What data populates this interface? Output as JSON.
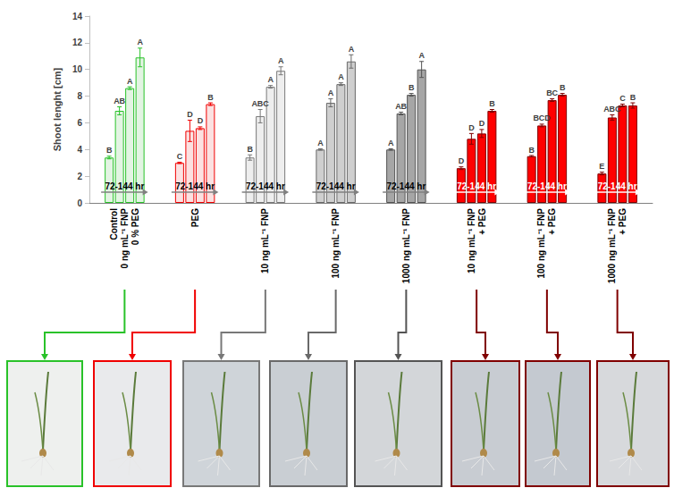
{
  "chart_data": {
    "type": "bar",
    "y_label": "Shoot lenght [cm]",
    "annotation": "72-144 hr",
    "categories": [
      "Control\n0 ng mL⁻¹ FNP\n0 % PEG",
      "PEG",
      "10 ng mL⁻¹ FNP",
      "100 ng mL⁻¹ FNP",
      "1000 ng mL⁻¹ FNP",
      "10 ng mL⁻¹ FNP\n+ PEG",
      "100 ng mL⁻¹ FNP\n+ PEG",
      "1000 ng mL⁻¹ FNP\n+ PEG"
    ],
    "colors": [
      "#e3f4e3",
      "#fbe1e1",
      "#eeeeee",
      "#cfcfcf",
      "#a6a6a6",
      "#ff0000",
      "#ff0000",
      "#ff0000"
    ],
    "series": [
      {
        "values": [
          3.4,
          3.0,
          3.4,
          4.0,
          4.0,
          2.6,
          3.5,
          2.2
        ],
        "errors": [
          0.1,
          0.05,
          0.2,
          0.05,
          0.05,
          0.1,
          0.05,
          0.1
        ],
        "letters": [
          "B",
          "C",
          "B",
          "A",
          "A",
          "D",
          "B",
          "E"
        ]
      },
      {
        "values": [
          6.9,
          5.4,
          6.5,
          7.5,
          6.7,
          4.8,
          5.8,
          6.4
        ],
        "errors": [
          0.3,
          0.8,
          0.5,
          0.3,
          0.1,
          0.4,
          0.1,
          0.2
        ],
        "letters": [
          "AB",
          "D",
          "ABC",
          "A",
          "AB",
          "D",
          "BCD",
          "ABC"
        ]
      },
      {
        "values": [
          8.6,
          5.6,
          8.7,
          8.9,
          8.1,
          5.2,
          7.7,
          7.3
        ],
        "errors": [
          0.1,
          0.1,
          0.1,
          0.1,
          0.1,
          0.3,
          0.1,
          0.1
        ],
        "letters": [
          "A",
          "D",
          "A",
          "A",
          "B",
          "D",
          "BC",
          "C"
        ]
      },
      {
        "values": [
          10.9,
          7.4,
          9.9,
          10.6,
          10.0,
          6.9,
          8.1,
          7.3
        ],
        "errors": [
          0.7,
          0.1,
          0.3,
          0.5,
          0.6,
          0.1,
          0.1,
          0.2
        ],
        "letters": [
          "A",
          "B",
          "A",
          "A",
          "A",
          "B",
          "B",
          "B"
        ]
      }
    ],
    "ylim": [
      0,
      14
    ],
    "yticks": [
      0,
      2,
      4,
      6,
      8,
      10,
      12,
      14
    ],
    "grid": false
  }
}
